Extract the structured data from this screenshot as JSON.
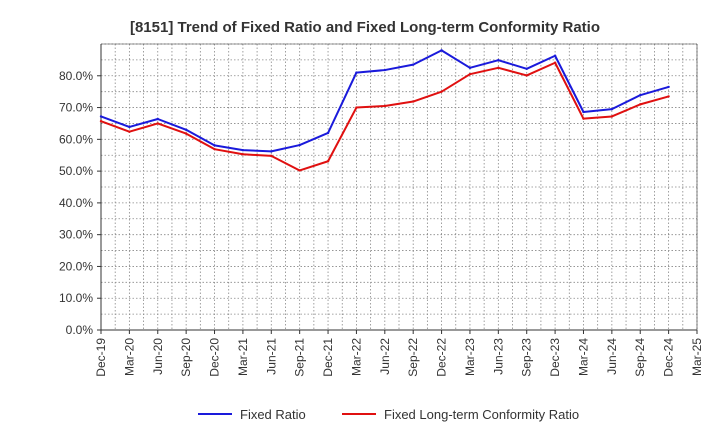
{
  "chart_data": {
    "type": "line",
    "title": "[8151]  Trend of Fixed Ratio and Fixed Long-term Conformity Ratio",
    "xlabel": "",
    "ylabel": "",
    "categories": [
      "Dec-19",
      "Mar-20",
      "Jun-20",
      "Sep-20",
      "Dec-20",
      "Mar-21",
      "Jun-21",
      "Sep-21",
      "Dec-21",
      "Mar-22",
      "Jun-22",
      "Sep-22",
      "Dec-22",
      "Mar-23",
      "Jun-23",
      "Sep-23",
      "Dec-23",
      "Mar-24",
      "Jun-24",
      "Sep-24",
      "Dec-24",
      "Mar-25"
    ],
    "y_ticks": [
      "0.0%",
      "10.0%",
      "20.0%",
      "30.0%",
      "40.0%",
      "50.0%",
      "60.0%",
      "70.0%",
      "80.0%"
    ],
    "ylim": [
      0,
      90
    ],
    "grid": true,
    "legend_position": "bottom",
    "series": [
      {
        "name": "Fixed Ratio",
        "color": "#1a1adb",
        "values": [
          67.2,
          63.9,
          66.4,
          63.0,
          58.1,
          56.6,
          56.2,
          58.2,
          62.0,
          81.0,
          81.8,
          83.5,
          88.0,
          82.5,
          84.9,
          82.2,
          86.3,
          68.6,
          69.5,
          73.9,
          76.5,
          null
        ]
      },
      {
        "name": "Fixed Long-term Conformity Ratio",
        "color": "#e01010",
        "values": [
          65.7,
          62.4,
          65.0,
          61.8,
          56.9,
          55.3,
          54.8,
          50.2,
          53.1,
          70.0,
          70.5,
          71.9,
          75.0,
          80.5,
          82.5,
          80.1,
          84.1,
          66.5,
          67.2,
          71.0,
          73.5,
          null
        ]
      }
    ]
  }
}
